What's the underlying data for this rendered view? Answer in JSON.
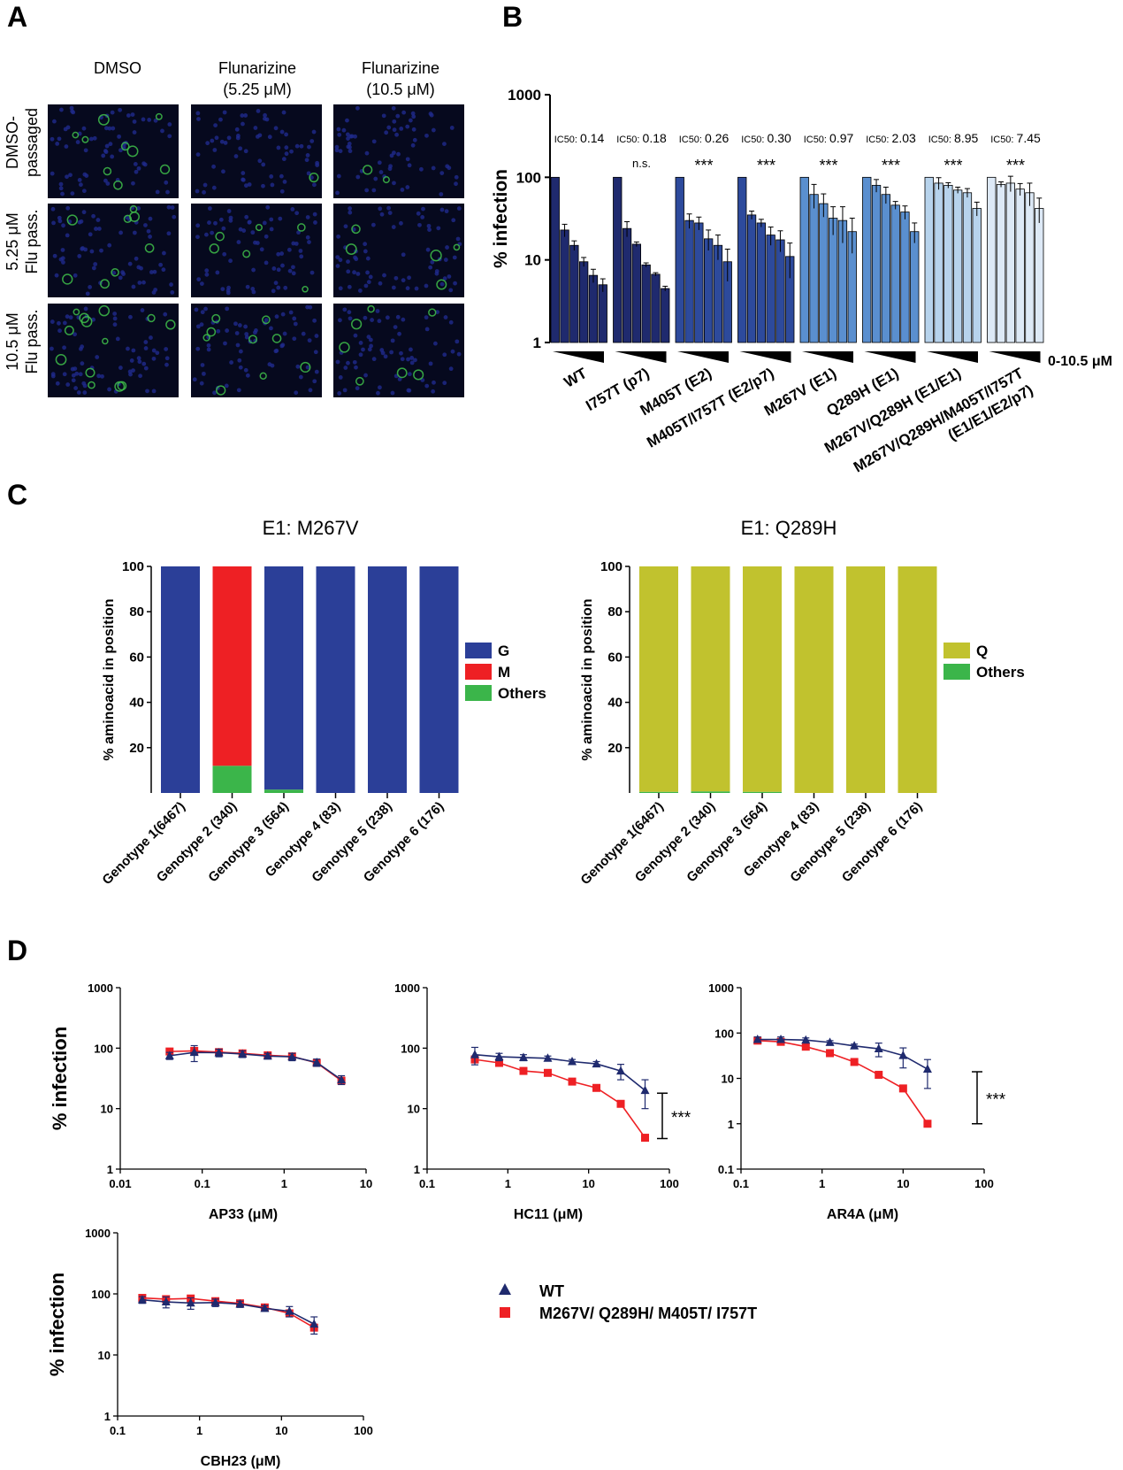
{
  "panels": {
    "A": {
      "letter": "A",
      "columns": [
        "DMSO",
        "Flunarizine\n(5.25 μM)",
        "Flunarizine\n(10.5 μM)"
      ],
      "rows": [
        "DMSO-\npassaged",
        "5.25 μM\nFlu pass.",
        "10.5 μM\nFlu pass."
      ],
      "colors": {
        "nuclei": "#1f2a8c",
        "stain": "#3fbf4a",
        "background": "#06091e"
      }
    },
    "B": {
      "letter": "B",
      "dose_label": "0-10.5 μM",
      "ic50_prefix": "IC50:"
    },
    "C": {
      "letter": "C"
    },
    "D": {
      "letter": "D",
      "legend": {
        "series": [
          {
            "name": "WT",
            "marker": "triangle",
            "color": "#1f2a6e"
          },
          {
            "name": "M267V/ Q289H/ M405T/ I757T",
            "marker": "square",
            "color": "#ee2024"
          }
        ]
      }
    }
  },
  "chart_data": [
    {
      "id": "B",
      "type": "bar",
      "ylabel": "% infection",
      "yscale": "log",
      "ylim": [
        1,
        1000
      ],
      "yticks": [
        "1",
        "10",
        "100",
        "1000"
      ],
      "groups": [
        {
          "label": "WT",
          "ic50": "0.14",
          "sig": "",
          "color": "#1f2a6e",
          "values": [
            100,
            23,
            15,
            9.5,
            6.5,
            5
          ],
          "errors": [
            0,
            4,
            2,
            1.2,
            1.2,
            0.9
          ]
        },
        {
          "label": "I757T (p7)",
          "ic50": "0.18",
          "sig": "n.s.",
          "color": "#1f2a6e",
          "values": [
            100,
            24,
            15.5,
            8.7,
            6.7,
            4.5
          ],
          "errors": [
            0,
            5,
            1,
            0.5,
            0.3,
            0.3
          ]
        },
        {
          "label": "M405T (E2)",
          "ic50": "0.26",
          "sig": "***",
          "color": "#2d4a9c",
          "values": [
            100,
            30,
            28,
            18,
            15,
            9.5
          ],
          "errors": [
            0,
            6,
            5,
            5,
            5,
            4
          ]
        },
        {
          "label": "M405T/I757T (E2/p7)",
          "ic50": "0.30",
          "sig": "***",
          "color": "#2d4a9c",
          "values": [
            100,
            35,
            28,
            20,
            17.5,
            11
          ],
          "errors": [
            0,
            4,
            3,
            5,
            5,
            5
          ]
        },
        {
          "label": "M267V (E1)",
          "ic50": "0.97",
          "sig": "***",
          "color": "#5a8fcf",
          "values": [
            100,
            62,
            48,
            32,
            30,
            22
          ],
          "errors": [
            0,
            20,
            15,
            12,
            14,
            10
          ]
        },
        {
          "label": "Q289H (E1)",
          "ic50": "2.03",
          "sig": "***",
          "color": "#5a8fcf",
          "values": [
            100,
            80,
            62,
            46,
            38,
            22
          ],
          "errors": [
            0,
            14,
            14,
            5,
            7,
            6
          ]
        },
        {
          "label": "M267V/Q289H (E1/E1)",
          "ic50": "8.95",
          "sig": "***",
          "color": "#b7d3ec",
          "values": [
            100,
            85,
            80,
            70,
            65,
            42
          ],
          "errors": [
            0,
            14,
            6,
            6,
            8,
            8
          ]
        },
        {
          "label": "M267V/Q289H/M405T/I757T\n(E1/E1/E2/p7)",
          "ic50": "7.45",
          "sig": "***",
          "color": "#dde9f6",
          "values": [
            100,
            82,
            85,
            72,
            65,
            42
          ],
          "errors": [
            0,
            6,
            18,
            12,
            20,
            14
          ]
        }
      ]
    },
    {
      "id": "C1",
      "type": "bar",
      "title": "E1: M267V",
      "ylabel": "% aminoacid in position",
      "ylim": [
        0,
        100
      ],
      "yticks": [
        "20",
        "40",
        "60",
        "80",
        "100"
      ],
      "categories": [
        "Genotype 1(6467)",
        "Genotype 2 (340)",
        "Genotype 3 (564)",
        "Genotype 4 (83)",
        "Genotype 5 (238)",
        "Genotype 6 (176)"
      ],
      "series": [
        {
          "name": "G",
          "color": "#2b3f98",
          "values": [
            100,
            0,
            98.5,
            100,
            100,
            100
          ]
        },
        {
          "name": "M",
          "color": "#ee2024",
          "values": [
            0,
            88,
            0,
            0,
            0,
            0
          ]
        },
        {
          "name": "Others",
          "color": "#3bb54a",
          "values": [
            0,
            12,
            1.5,
            0,
            0,
            0
          ]
        }
      ]
    },
    {
      "id": "C2",
      "type": "bar",
      "title": "E1: Q289H",
      "ylabel": "% aminoacid in position",
      "ylim": [
        0,
        100
      ],
      "yticks": [
        "20",
        "40",
        "60",
        "80",
        "100"
      ],
      "categories": [
        "Genotype 1(6467)",
        "Genotype 2 (340)",
        "Genotype 3 (564)",
        "Genotype 4 (83)",
        "Genotype 5 (238)",
        "Genotype 6 (176)"
      ],
      "series": [
        {
          "name": "Q",
          "color": "#c1c22e",
          "values": [
            99.5,
            99.3,
            99.5,
            100,
            100,
            100
          ]
        },
        {
          "name": "Others",
          "color": "#3bb54a",
          "values": [
            0.5,
            0.7,
            0.5,
            0,
            0,
            0
          ]
        }
      ]
    },
    {
      "id": "D1",
      "type": "line",
      "xlabel": "AP33 (μM)",
      "ylabel": "% infection",
      "xscale": "log",
      "yscale": "log",
      "xlim": [
        0.01,
        10
      ],
      "ylim": [
        1,
        1000
      ],
      "xticks": [
        "0.01",
        "0.1",
        "1",
        "10"
      ],
      "yticks": [
        "1",
        "10",
        "100",
        "1000"
      ],
      "sig": "",
      "series": [
        {
          "name": "WT",
          "x": [
            0.04,
            0.08,
            0.16,
            0.31,
            0.63,
            1.25,
            2.5,
            5
          ],
          "y": [
            75,
            85,
            84,
            80,
            74,
            72,
            58,
            30
          ],
          "err": [
            10,
            25,
            12,
            10,
            8,
            10,
            8,
            5
          ]
        },
        {
          "name": "M267V/ Q289H/ M405T/ I757T",
          "x": [
            0.04,
            0.08,
            0.16,
            0.31,
            0.63,
            1.25,
            2.5,
            5
          ],
          "y": [
            88,
            90,
            86,
            82,
            76,
            73,
            57,
            29
          ],
          "err": [
            0,
            0,
            0,
            0,
            0,
            0,
            0,
            0
          ]
        }
      ]
    },
    {
      "id": "D2",
      "type": "line",
      "xlabel": "HC11 (μM)",
      "ylabel": "",
      "xscale": "log",
      "yscale": "log",
      "xlim": [
        0.1,
        100
      ],
      "ylim": [
        1,
        1000
      ],
      "xticks": [
        "0.1",
        "1",
        "10",
        "100"
      ],
      "yticks": [
        "1",
        "10",
        "100",
        "1000"
      ],
      "sig": "***",
      "sig_y": [
        18,
        3.2
      ],
      "series": [
        {
          "name": "WT",
          "x": [
            0.39,
            0.78,
            1.56,
            3.12,
            6.25,
            12.5,
            25,
            50
          ],
          "y": [
            78,
            72,
            70,
            68,
            60,
            55,
            42,
            20
          ],
          "err": [
            25,
            10,
            8,
            6,
            5,
            5,
            12,
            10
          ]
        },
        {
          "name": "M267V/ Q289H/ M405T/ I757T",
          "x": [
            0.39,
            0.78,
            1.56,
            3.12,
            6.25,
            12.5,
            25,
            50
          ],
          "y": [
            65,
            57,
            42,
            39,
            28,
            22,
            12,
            3.3
          ],
          "err": [
            0,
            0,
            0,
            0,
            0,
            0,
            0,
            0
          ]
        }
      ]
    },
    {
      "id": "D3",
      "type": "line",
      "xlabel": "AR4A (μM)",
      "ylabel": "",
      "xscale": "log",
      "yscale": "log",
      "xlim": [
        0.1,
        100
      ],
      "ylim": [
        0.1,
        1000
      ],
      "xticks": [
        "0.1",
        "1",
        "10",
        "100"
      ],
      "yticks": [
        "0.1",
        "1",
        "10",
        "100",
        "1000"
      ],
      "sig": "***",
      "sig_y": [
        14,
        1
      ],
      "series": [
        {
          "name": "WT",
          "x": [
            0.16,
            0.31,
            0.63,
            1.25,
            2.5,
            5,
            10,
            20
          ],
          "y": [
            72,
            72,
            70,
            62,
            52,
            45,
            32,
            16
          ],
          "err": [
            10,
            10,
            8,
            6,
            5,
            15,
            15,
            10
          ]
        },
        {
          "name": "M267V/ Q289H/ M405T/ I757T",
          "x": [
            0.16,
            0.31,
            0.63,
            1.25,
            2.5,
            5,
            10,
            20
          ],
          "y": [
            68,
            64,
            50,
            36,
            23,
            12,
            6,
            1
          ],
          "err": [
            0,
            0,
            0,
            0,
            0,
            0,
            0,
            0
          ]
        }
      ]
    },
    {
      "id": "D4",
      "type": "line",
      "xlabel": "CBH23 (μM)",
      "ylabel": "% infection",
      "xscale": "log",
      "yscale": "log",
      "xlim": [
        0.1,
        100
      ],
      "ylim": [
        1,
        1000
      ],
      "xticks": [
        "0.1",
        "1",
        "10",
        "100"
      ],
      "yticks": [
        "1",
        "10",
        "100",
        "1000"
      ],
      "sig": "",
      "series": [
        {
          "name": "WT",
          "x": [
            0.2,
            0.39,
            0.78,
            1.56,
            3.12,
            6.25,
            12.5,
            25
          ],
          "y": [
            80,
            74,
            71,
            72,
            68,
            58,
            52,
            32
          ],
          "err": [
            10,
            15,
            15,
            10,
            8,
            6,
            10,
            10
          ]
        },
        {
          "name": "M267V/ Q289H/ M405T/ I757T",
          "x": [
            0.2,
            0.39,
            0.78,
            1.56,
            3.12,
            6.25,
            12.5,
            25
          ],
          "y": [
            86,
            82,
            84,
            76,
            70,
            60,
            48,
            28
          ],
          "err": [
            0,
            0,
            0,
            0,
            0,
            0,
            0,
            0
          ]
        }
      ]
    }
  ]
}
